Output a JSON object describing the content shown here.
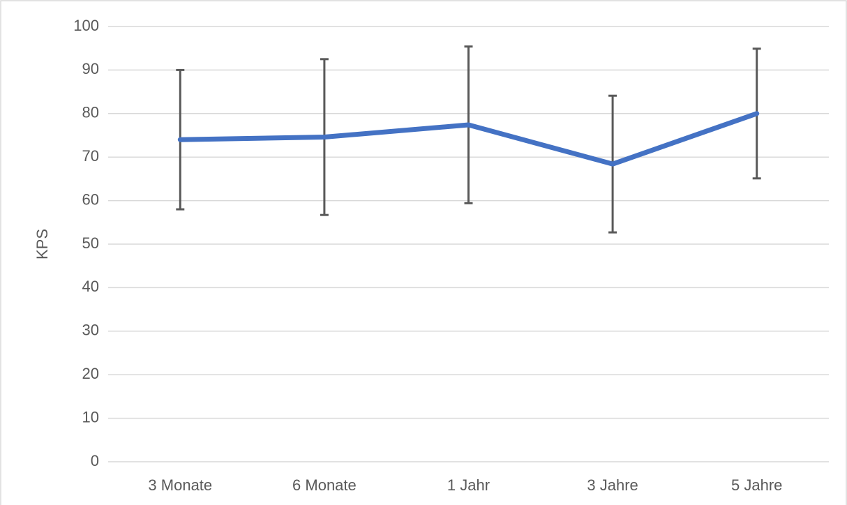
{
  "chart_data": {
    "type": "line",
    "y_label": "KPS",
    "categories": [
      "3 Monate",
      "6 Monate",
      "1 Jahr",
      "3 Jahre",
      "5 Jahre"
    ],
    "values": [
      74.0,
      74.6,
      77.4,
      68.4,
      80.0
    ],
    "errors": [
      16.0,
      17.9,
      18.0,
      15.7,
      14.9
    ],
    "color": "#4472c4",
    "error_color": "#595959",
    "ylim": [
      0,
      100
    ],
    "yticks": [
      0,
      10,
      20,
      30,
      40,
      50,
      60,
      70,
      80,
      90,
      100
    ],
    "grid": true
  }
}
